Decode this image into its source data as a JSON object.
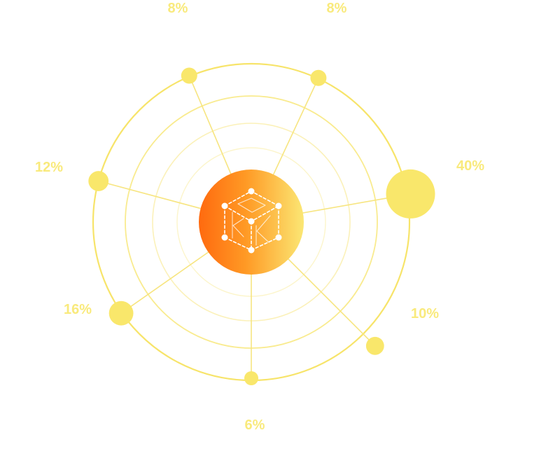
{
  "chart_data": {
    "type": "radial-bubble",
    "title": "",
    "center_icon": "cube-network-icon",
    "ring_count": 4,
    "points": [
      {
        "label": "8%",
        "value": 8
      },
      {
        "label": "8%",
        "value": 8
      },
      {
        "label": "40%",
        "value": 40
      },
      {
        "label": "10%",
        "value": 10
      },
      {
        "label": "6%",
        "value": 6
      },
      {
        "label": "16%",
        "value": 16
      },
      {
        "label": "12%",
        "value": 12
      }
    ]
  },
  "colors": {
    "bubble": "#f9e76b",
    "label": "#f9ea7c",
    "outer_ring": "#f7e46a",
    "inner_ring": "#faeea8",
    "spoke": "#f7e580",
    "hub_start": "#ff6a0f",
    "hub_end": "#fbe774",
    "icon": "#ffffff"
  }
}
